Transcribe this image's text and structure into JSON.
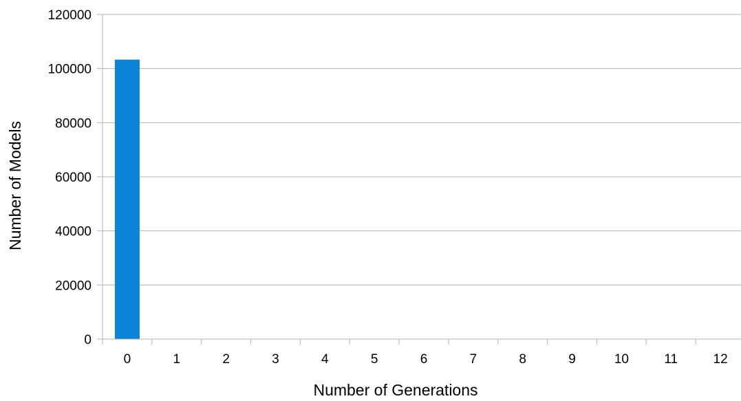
{
  "chart_data": {
    "type": "bar",
    "title": "",
    "xlabel": "Number of Generations",
    "ylabel": "Number of Models",
    "categories": [
      "0",
      "1",
      "2",
      "3",
      "4",
      "5",
      "6",
      "7",
      "8",
      "9",
      "10",
      "11",
      "12"
    ],
    "values": [
      103300,
      0,
      0,
      0,
      0,
      0,
      0,
      0,
      0,
      0,
      0,
      0,
      0
    ],
    "ylim": [
      0,
      120000
    ],
    "yticks": [
      "0",
      "20000",
      "40000",
      "60000",
      "80000",
      "100000",
      "120000"
    ],
    "grid": true,
    "legend": "none"
  },
  "colors": {
    "bar": "#0a84d6",
    "grid": "#b3b3b3",
    "axis": "#b3b3b3",
    "text": "#000000"
  }
}
